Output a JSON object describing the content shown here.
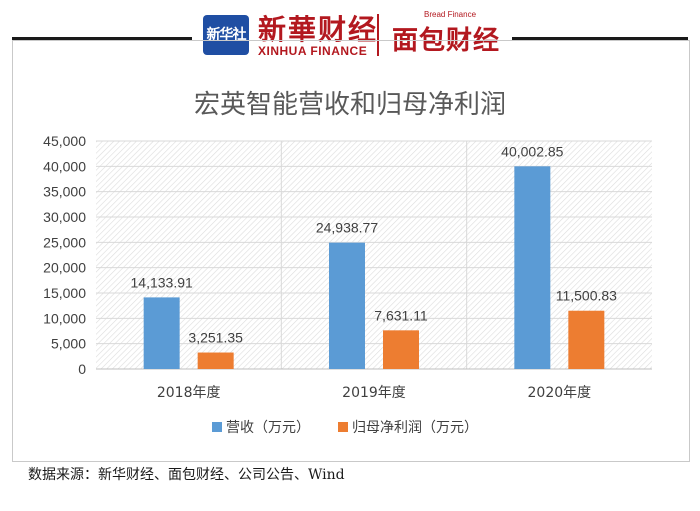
{
  "header": {
    "xinhua_badge": "新华社",
    "xinhua_cn": "新華财经",
    "xinhua_en": "XINHUA FINANCE",
    "bf_en": "Bread Finance",
    "bf_cn": "面包财经"
  },
  "colors": {
    "revenue": "#5b9bd5",
    "profit": "#ed7d31",
    "grid": "#d9d9d9",
    "line": "#1a1a1a"
  },
  "source": "数据来源：新华财经、面包财经、公司公告、Wind",
  "chart_data": {
    "type": "bar",
    "title": "宏英智能营收和归母净利润",
    "categories": [
      "2018年度",
      "2019年度",
      "2020年度"
    ],
    "series": [
      {
        "name": "营收（万元）",
        "values": [
          14133.91,
          24938.77,
          40002.85
        ],
        "labels": [
          "14,133.91",
          "24,938.77",
          "40,002.85"
        ]
      },
      {
        "name": "归母净利润（万元）",
        "values": [
          3251.35,
          7631.11,
          11500.83
        ],
        "labels": [
          "3,251.35",
          "7,631.11",
          "11,500.83"
        ]
      }
    ],
    "ylim": [
      0,
      45000
    ],
    "yticks": [
      "0",
      "5,000",
      "10,000",
      "15,000",
      "20,000",
      "25,000",
      "30,000",
      "35,000",
      "40,000",
      "45,000"
    ],
    "grid": true,
    "legend_position": "bottom",
    "xlabel": "",
    "ylabel": ""
  }
}
